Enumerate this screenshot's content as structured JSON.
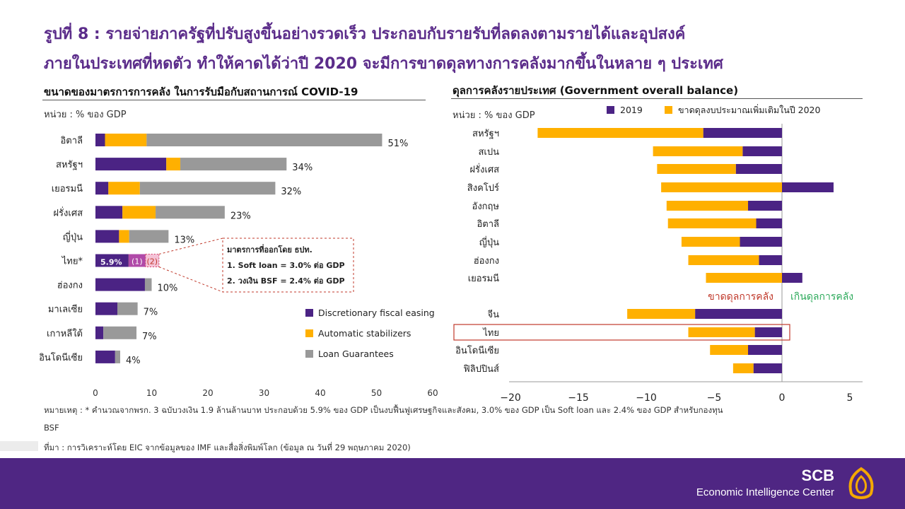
{
  "page": {
    "title_line1": "รูปที่ 8 : รายจ่ายภาครัฐที่ปรับสูงขึ้นอย่างรวดเร็ว ประกอบกับรายรับที่ลดลงตามรายได้และอุปสงค์",
    "title_line2": "ภายในประเทศที่หดตัว ทำให้คาดได้ว่าปี 2020 จะมีการขาดดุลทางการคลังมากขึ้นในหลาย ๆ ประเทศ",
    "left_section_title": "ขนาดของมาตรการการคลัง ในการรับมือกับสถานการณ์ COVID-19",
    "right_section_title": "ดุลการคลังรายประเทศ (Government overall balance)",
    "left_unit": "หน่วย : % ของ GDP",
    "right_unit": "หน่วย : % ของ GDP",
    "note_line1": "หมายเหตุ : * คำนวณจากพรก. 3 ฉบับวงเงิน 1.9 ล้านล้านบาท ประกอบด้วย 5.9% ของ GDP เป็นงบฟื้นฟูเศรษฐกิจและสังคม, 3.0% ของ GDP เป็น Soft loan และ 2.4% ของ GDP สำหรับกองทุน",
    "note_line2": "BSF",
    "source": "ที่มา : การวิเคราะห์โดย EIC จากข้อมูลของ IMF และสื่อสิ่งพิมพ์โลก (ข้อมูล ณ วันที่ 29 พฤษภาคม 2020)",
    "brand": "SCB",
    "brand_sub": "Economic Intelligence Center"
  },
  "colors": {
    "purple": "#4b2384",
    "yellow": "#ffb000",
    "grey": "#999999",
    "title": "#5b2c8a",
    "red": "#c0392b",
    "green": "#2eaa5c"
  },
  "chart_data": [
    {
      "type": "bar",
      "orientation": "horizontal",
      "stacked": true,
      "categories": [
        "อิตาลี",
        "สหรัฐฯ",
        "เยอรมนี",
        "ฝรั่งเศส",
        "ญี่ปุ่น",
        "ไทย*",
        "ฮ่องกง",
        "มาเลเซีย",
        "เกาหลีใต้",
        "อินโดนีเซีย"
      ],
      "series": [
        {
          "name": "Discretionary fiscal easing",
          "color": "#4b2384",
          "values": [
            1.7,
            12.6,
            2.3,
            4.8,
            4.2,
            5.9,
            8.8,
            3.9,
            1.4,
            3.5
          ]
        },
        {
          "name": "Automatic stabilizers",
          "color": "#ffb000",
          "values": [
            7.4,
            2.5,
            5.6,
            5.9,
            1.8,
            3.0,
            0,
            0,
            0,
            0
          ]
        },
        {
          "name": "Loan Guarantees",
          "color": "#999999",
          "values": [
            41.9,
            18.9,
            24.1,
            12.3,
            7.0,
            2.4,
            1.2,
            3.6,
            5.9,
            0.9
          ]
        }
      ],
      "total_labels": [
        "51%",
        "34%",
        "32%",
        "23%",
        "13%",
        "",
        "10%",
        "7%",
        "7%",
        "4%"
      ],
      "thai_label": "5.9%",
      "thai_marks": [
        "(1)",
        "(2)"
      ],
      "callout": {
        "title": "มาตรการที่ออกโดย ธปท.",
        "items": [
          "1.  Soft loan = 3.0% ต่อ GDP",
          "2.  วงเงิน BSF = 2.4% ต่อ GDP"
        ]
      },
      "xlim": [
        0,
        60
      ],
      "xticks": [
        "0",
        "10",
        "20",
        "30",
        "40",
        "50",
        "60"
      ],
      "legend": [
        "Discretionary fiscal easing",
        "Automatic stabilizers",
        "Loan Guarantees"
      ],
      "legend_position": "bottom-right"
    },
    {
      "type": "bar",
      "orientation": "horizontal",
      "categories": [
        "สหรัฐฯ",
        "สเปน",
        "ฝรั่งเศส",
        "สิงคโปร์",
        "อังกฤษ",
        "อิตาลี",
        "ญี่ปุ่น",
        "ฮ่องกง",
        "เยอรมนี",
        "จีน",
        "ไทย",
        "อินโดนีเซีย",
        "ฟิลิปปินส์"
      ],
      "series": [
        {
          "name": "2019",
          "color": "#4b2384",
          "values": [
            -5.8,
            -2.9,
            -3.4,
            3.8,
            -2.5,
            -1.9,
            -3.1,
            -1.7,
            1.5,
            -6.4,
            -2.0,
            -2.5,
            -2.1
          ]
        },
        {
          "name": "ขาดดุลงบประมาณเพิ่มเติมในปี 2020",
          "color": "#ffb000",
          "values": [
            -12.2,
            -6.6,
            -5.8,
            -8.9,
            -6.0,
            -6.5,
            -4.3,
            -5.2,
            -5.6,
            -5.0,
            -4.9,
            -2.8,
            -1.5
          ]
        }
      ],
      "xlim": [
        -20,
        5
      ],
      "xticks": [
        "−20",
        "−15",
        "−10",
        "−5",
        "0",
        "5"
      ],
      "annotations": {
        "deficit": "ขาดดุลการคลัง",
        "surplus": "เกินดุลการคลัง"
      },
      "highlight": "ไทย",
      "legend_position": "top"
    }
  ]
}
